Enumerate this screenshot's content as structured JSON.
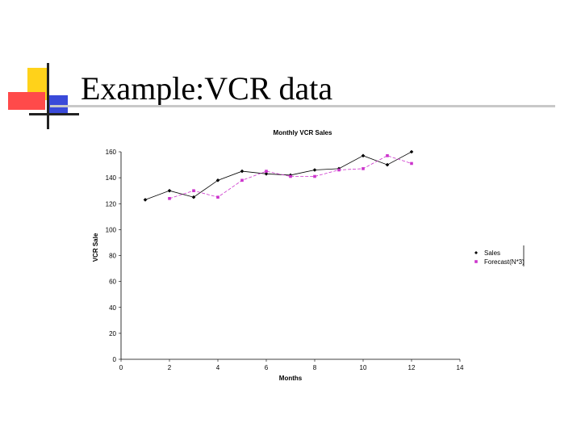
{
  "slide": {
    "title": "Example:VCR data"
  },
  "chart_data": {
    "type": "line",
    "title": "Monthly VCR Sales",
    "xlabel": "Months",
    "ylabel": "VCR Sale",
    "xlim": [
      0,
      14
    ],
    "ylim": [
      0,
      160
    ],
    "xticks": [
      0,
      2,
      4,
      6,
      8,
      10,
      12,
      14
    ],
    "yticks": [
      0,
      20,
      40,
      60,
      80,
      100,
      120,
      140,
      160
    ],
    "grid": false,
    "legend_position": "right",
    "series": [
      {
        "name": "Sales",
        "color": "#000000",
        "marker": "diamond",
        "x": [
          1,
          2,
          3,
          4,
          5,
          6,
          7,
          8,
          9,
          10,
          11,
          12
        ],
        "values": [
          123,
          130,
          125,
          138,
          145,
          143,
          142,
          146,
          147,
          157,
          150,
          160
        ]
      },
      {
        "name": "Forecast(N*3)",
        "color": "#cc33cc",
        "marker": "square",
        "x": [
          2,
          3,
          4,
          5,
          6,
          7,
          8,
          9,
          10,
          11,
          12
        ],
        "values": [
          124,
          130,
          125,
          138,
          145,
          141,
          141,
          146,
          147,
          157,
          151
        ]
      }
    ]
  }
}
